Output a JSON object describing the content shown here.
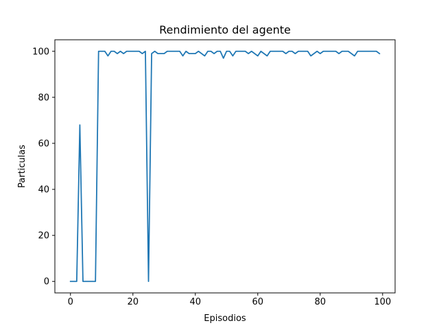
{
  "chart_data": {
    "type": "line",
    "title": "Rendimiento del agente",
    "xlabel": "Episodios",
    "ylabel": "Particulas",
    "xlim": [
      -5,
      104
    ],
    "ylim": [
      -5,
      105
    ],
    "xticks": [
      0,
      20,
      40,
      60,
      80,
      100
    ],
    "yticks": [
      0,
      20,
      40,
      60,
      80,
      100
    ],
    "grid": false,
    "series": [
      {
        "color": "#1f77b4",
        "x": [
          0,
          1,
          2,
          3,
          4,
          5,
          6,
          7,
          8,
          9,
          10,
          11,
          12,
          13,
          14,
          15,
          16,
          17,
          18,
          19,
          20,
          21,
          22,
          23,
          24,
          25,
          26,
          27,
          28,
          29,
          30,
          31,
          32,
          33,
          34,
          35,
          36,
          37,
          38,
          39,
          40,
          41,
          42,
          43,
          44,
          45,
          46,
          47,
          48,
          49,
          50,
          51,
          52,
          53,
          54,
          55,
          56,
          57,
          58,
          59,
          60,
          61,
          62,
          63,
          64,
          65,
          66,
          67,
          68,
          69,
          70,
          71,
          72,
          73,
          74,
          75,
          76,
          77,
          78,
          79,
          80,
          81,
          82,
          83,
          84,
          85,
          86,
          87,
          88,
          89,
          90,
          91,
          92,
          93,
          94,
          95,
          96,
          97,
          98,
          99
        ],
        "y": [
          0,
          0,
          0,
          68,
          0,
          0,
          0,
          0,
          0,
          100,
          100,
          100,
          98,
          100,
          100,
          99,
          100,
          99,
          100,
          100,
          100,
          100,
          100,
          99,
          100,
          0,
          99,
          100,
          99,
          99,
          99,
          100,
          100,
          100,
          100,
          100,
          98,
          100,
          99,
          99,
          99,
          100,
          99,
          98,
          100,
          100,
          99,
          100,
          100,
          97,
          100,
          100,
          98,
          100,
          100,
          100,
          100,
          99,
          100,
          99,
          98,
          100,
          99,
          98,
          100,
          100,
          100,
          100,
          100,
          99,
          100,
          100,
          99,
          100,
          100,
          100,
          100,
          98,
          99,
          100,
          99,
          100,
          100,
          100,
          100,
          100,
          99,
          100,
          100,
          100,
          99,
          98,
          100,
          100,
          100,
          100,
          100,
          100,
          100,
          99
        ]
      }
    ]
  }
}
